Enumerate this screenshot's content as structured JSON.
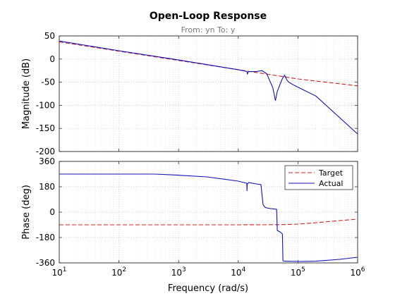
{
  "chart_data": {
    "type": "line",
    "title": "Open-Loop Response",
    "subtitle": "From: yn  To: y",
    "xlabel": "Frequency  (rad/s)",
    "x_scale": "log",
    "x_ticks": [
      10,
      100,
      1000,
      10000,
      100000,
      1000000
    ],
    "x_tick_labels": [
      {
        "base": "10",
        "exp": "1"
      },
      {
        "base": "10",
        "exp": "2"
      },
      {
        "base": "10",
        "exp": "3"
      },
      {
        "base": "10",
        "exp": "4"
      },
      {
        "base": "10",
        "exp": "5"
      },
      {
        "base": "10",
        "exp": "6"
      }
    ],
    "xlim": [
      10,
      1000000
    ],
    "grid": true,
    "legend": {
      "placement": "top-right",
      "panel": "phase",
      "entries": [
        "Target",
        "Actual"
      ]
    },
    "series_style": {
      "Target": {
        "color": "#d62020",
        "dash": "dashed"
      },
      "Actual": {
        "color": "#1010b8",
        "dash": "solid"
      }
    },
    "panels": [
      {
        "id": "magnitude",
        "ylabel": "Magnitude (dB)",
        "ylim": [
          -200,
          50
        ],
        "yticks": [
          -200,
          -150,
          -100,
          -50,
          0,
          50
        ],
        "series": [
          {
            "name": "Target",
            "x": [
              10,
              100,
              1000,
              10000,
              100000,
              1000000
            ],
            "y": [
              37,
              17,
              -3,
              -23,
              -43,
              -58
            ]
          },
          {
            "name": "Actual",
            "x": [
              10,
              100,
              1000,
              10000,
              14000,
              14200,
              15000,
              20000,
              25000,
              30000,
              38000,
              42000,
              45000,
              50000,
              55000,
              60000,
              65000,
              70000,
              90000,
              200000,
              1000000
            ],
            "y": [
              39,
              18,
              -2,
              -23,
              -27,
              -32,
              -27,
              -27,
              -25,
              -32,
              -62,
              -90,
              -70,
              -55,
              -42,
              -35,
              -45,
              -50,
              -58,
              -80,
              -162
            ]
          }
        ]
      },
      {
        "id": "phase",
        "ylabel": "Phase (deg)",
        "ylim": [
          -360,
          360
        ],
        "yticks": [
          -360,
          -180,
          0,
          180,
          360
        ],
        "series": [
          {
            "name": "Target",
            "x": [
              10,
              1000,
              10000,
              50000,
              100000,
              200000,
              500000,
              1000000
            ],
            "y": [
              -90,
              -90,
              -90,
              -89,
              -85,
              -75,
              -60,
              -50
            ]
          },
          {
            "name": "Actual",
            "x": [
              10,
              400,
              1000,
              3000,
              10000,
              13900,
              14000,
              14100,
              14300,
              15000,
              20000,
              24000,
              26000,
              28000,
              30000,
              35000,
              40000,
              44000,
              45000,
              50000,
              55000,
              56000,
              60000,
              100000,
              200000,
              500000,
              1000000
            ],
            "y": [
              270,
              270,
              262,
              250,
              220,
              205,
              150,
              200,
              200,
              210,
              200,
              195,
              55,
              35,
              30,
              25,
              22,
              20,
              -130,
              -140,
              -155,
              -345,
              -348,
              -350,
              -348,
              -335,
              -320
            ]
          }
        ]
      }
    ]
  }
}
